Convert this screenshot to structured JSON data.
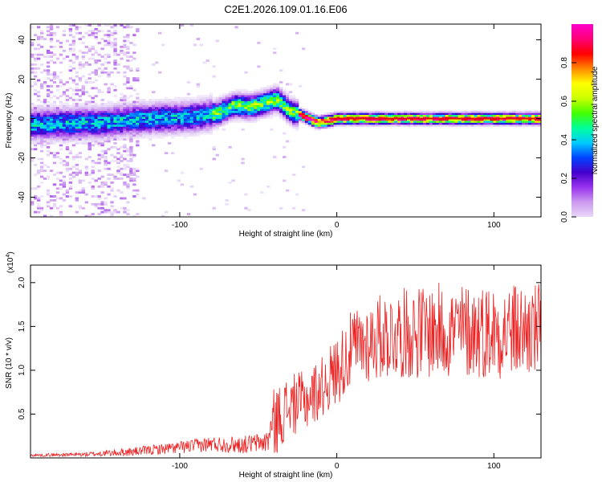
{
  "figure_title": "C2E1.2026.109.01.16.E06",
  "colors": {
    "line": "#ee2222",
    "frame": "#000000",
    "colormap": [
      "#ffffff",
      "#e8d8f8",
      "#cc99ee",
      "#9933ee",
      "#4400cc",
      "#0044ff",
      "#00ccff",
      "#00ff99",
      "#44ff00",
      "#ccff00",
      "#ffff00",
      "#ff8800",
      "#ff0000",
      "#ff0077",
      "#ff00cc"
    ]
  },
  "chart_data": [
    {
      "type": "heatmap",
      "title": "",
      "xlabel": "Height of straight line (km)",
      "ylabel": "Frequency (Hz)",
      "xlim": [
        -195,
        130
      ],
      "ylim": [
        -50,
        48
      ],
      "xticks": [
        -100,
        0,
        100
      ],
      "yticks": [
        -40,
        -20,
        0,
        20,
        40
      ],
      "colorbar": {
        "label": "Normalized spectral amplitude",
        "range": [
          0,
          1
        ],
        "ticks": [
          "0.0",
          "0.2",
          "0.4",
          "0.6",
          "0.8"
        ],
        "tick_values": [
          0,
          0.2,
          0.4,
          0.6,
          0.8
        ]
      },
      "ridge": {
        "description_points": [
          [
            -195,
            -3
          ],
          [
            -150,
            -2
          ],
          [
            -120,
            0
          ],
          [
            -90,
            1
          ],
          [
            -75,
            3
          ],
          [
            -65,
            7
          ],
          [
            -55,
            6
          ],
          [
            -45,
            8
          ],
          [
            -38,
            10
          ],
          [
            -30,
            4
          ],
          [
            -20,
            1
          ],
          [
            -12,
            -2
          ],
          [
            -5,
            -1
          ],
          [
            0,
            0
          ],
          [
            130,
            0
          ]
        ],
        "noise_region_x": [
          -195,
          -125
        ]
      }
    },
    {
      "type": "line",
      "title": "",
      "xlabel": "Height of straight line (km)",
      "ylabel": "SNR (10 * v/v)",
      "y_multiplier_label": "(x10",
      "y_multiplier_exp": "4",
      "y_multiplier_close": ")",
      "xlim": [
        -195,
        130
      ],
      "ylim": [
        0,
        22000
      ],
      "xticks": [
        -100,
        0,
        100
      ],
      "yticks": [
        5000,
        10000,
        15000,
        20000
      ],
      "ytick_labels": [
        "0.5",
        "1.0",
        "1.5",
        "2.0"
      ],
      "envelope": [
        {
          "x": -195,
          "mean": 300,
          "amp": 150
        },
        {
          "x": -160,
          "mean": 400,
          "amp": 250
        },
        {
          "x": -130,
          "mean": 700,
          "amp": 500
        },
        {
          "x": -100,
          "mean": 1200,
          "amp": 700
        },
        {
          "x": -80,
          "mean": 1600,
          "amp": 900
        },
        {
          "x": -60,
          "mean": 1500,
          "amp": 1000
        },
        {
          "x": -45,
          "mean": 1800,
          "amp": 1200
        },
        {
          "x": -40,
          "mean": 4000,
          "amp": 4000
        },
        {
          "x": -30,
          "mean": 6000,
          "amp": 3500
        },
        {
          "x": -20,
          "mean": 6500,
          "amp": 3500
        },
        {
          "x": -10,
          "mean": 8000,
          "amp": 3500
        },
        {
          "x": 0,
          "mean": 10000,
          "amp": 4000
        },
        {
          "x": 10,
          "mean": 12500,
          "amp": 4500
        },
        {
          "x": 30,
          "mean": 14000,
          "amp": 5000
        },
        {
          "x": 60,
          "mean": 14500,
          "amp": 5500
        },
        {
          "x": 100,
          "mean": 14500,
          "amp": 5500
        },
        {
          "x": 130,
          "mean": 14500,
          "amp": 5500
        }
      ]
    }
  ]
}
